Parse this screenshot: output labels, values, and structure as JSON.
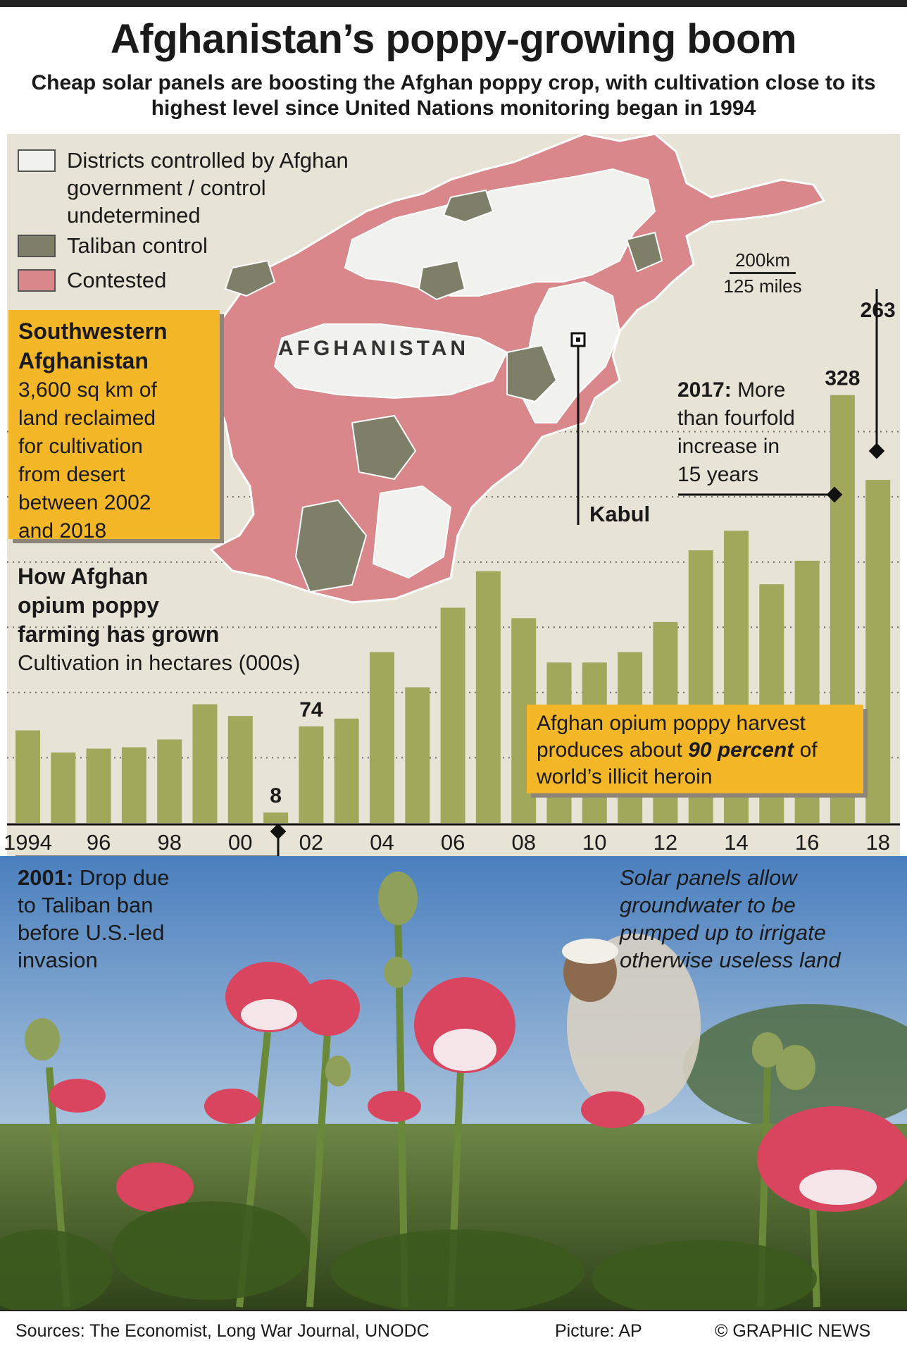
{
  "title": "Afghanistan’s poppy-growing boom",
  "subtitle": "Cheap solar panels are boosting the Afghan poppy crop, with cultivation close to its highest level since United Nations monitoring began in 1994",
  "legend": [
    {
      "label": "Districts controlled by Afghan government / control undetermined",
      "color": "#f1f1ee"
    },
    {
      "label": "Taliban control",
      "color": "#7d7f68"
    },
    {
      "label": "Contested",
      "color": "#d9878a"
    }
  ],
  "map": {
    "country_label": "AFGHANISTAN",
    "city_label": "Kabul",
    "scale_km": "200km",
    "scale_miles": "125 miles"
  },
  "southwest_box": {
    "heading_line1": "Southwestern",
    "heading_line2": "Afghanistan",
    "body": [
      "3,600 sq km of",
      "land reclaimed",
      "for cultivation",
      "from desert",
      "between 2002",
      "and 2018"
    ]
  },
  "chart_heading": {
    "lines": [
      "How Afghan",
      "opium poppy",
      "farming has grown"
    ],
    "unit": "Cultivation in hectares (000s)"
  },
  "annotations": {
    "a2017_bold": "2017:",
    "a2017_lines": [
      " More",
      "than fourfold",
      "increase in",
      "15 years"
    ],
    "heroin_pre": "Afghan opium poppy harvest produces about ",
    "heroin_em": "90 percent",
    "heroin_post": " of world’s illicit heroin",
    "a2001_bold": "2001:",
    "a2001_lines": [
      " Drop due",
      "to Taliban ban",
      "before U.S.-led",
      "invasion"
    ],
    "solar_lines": [
      "Solar panels allow",
      "groundwater to be",
      "pumped up to irrigate",
      "otherwise useless land"
    ]
  },
  "chart_data": {
    "type": "bar",
    "x": [
      1994,
      1995,
      1996,
      1997,
      1998,
      1999,
      2000,
      2001,
      2002,
      2003,
      2004,
      2005,
      2006,
      2007,
      2008,
      2009,
      2010,
      2011,
      2012,
      2013,
      2014,
      2015,
      2016,
      2017,
      2018
    ],
    "values": [
      71,
      54,
      57,
      58,
      64,
      91,
      82,
      8,
      74,
      80,
      131,
      104,
      165,
      193,
      157,
      123,
      123,
      131,
      154,
      209,
      224,
      183,
      201,
      328,
      263
    ],
    "tick_labels": [
      "1994",
      "96",
      "98",
      "00",
      "02",
      "04",
      "06",
      "08",
      "10",
      "12",
      "14",
      "16",
      "18"
    ],
    "data_labels": {
      "2001": "8",
      "2002": "74",
      "2017": "328",
      "2018": "263"
    },
    "ylabel": "Cultivation in hectares (000s)",
    "ylim": [
      0,
      350
    ],
    "bar_color": "#a1a85c"
  },
  "photo": {
    "description_colors": {
      "sky": "#4f86c2",
      "foliage": "#4d6a2c",
      "poppy": "#d9445e"
    }
  },
  "footer": {
    "sources": "Sources: The Economist, Long War Journal, UNODC",
    "picture": "Picture: AP",
    "credit": "© GRAPHIC NEWS"
  }
}
